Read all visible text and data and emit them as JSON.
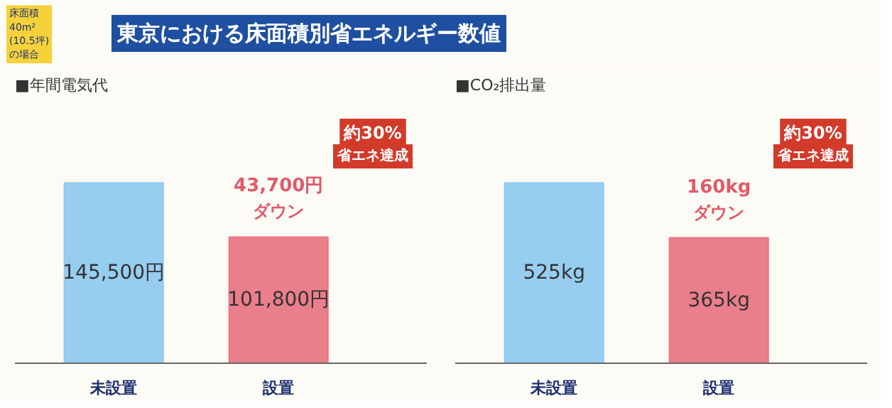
{
  "chart_data": [
    {
      "type": "other",
      "title": "東京における床面積別省エネルギー数値",
      "subtitle": "床面積\n40m²\n(10.5坪)\nの場合"
    },
    {
      "type": "bar",
      "title": "■年間電気代",
      "categories": [
        "未設置",
        "設置"
      ],
      "values": [
        145500,
        101800
      ],
      "colors": [
        "#8cc8f0",
        "#e8707e"
      ],
      "value_labels": [
        "145,500円",
        "101,800円"
      ],
      "annotations": [
        "43,700円",
        "ダウン",
        "約30%",
        "省エネ達成"
      ]
    },
    {
      "type": "bar",
      "title": "■CO₂排出量",
      "categories": [
        "未設置",
        "設置"
      ],
      "values": [
        525,
        365
      ],
      "colors": [
        "#8cc8f0",
        "#e8707e"
      ],
      "value_labels": [
        "525kg",
        "365kg"
      ],
      "annotations": [
        "160kg",
        "ダウン",
        "約30%",
        "省エネ達成"
      ]
    }
  ]
}
